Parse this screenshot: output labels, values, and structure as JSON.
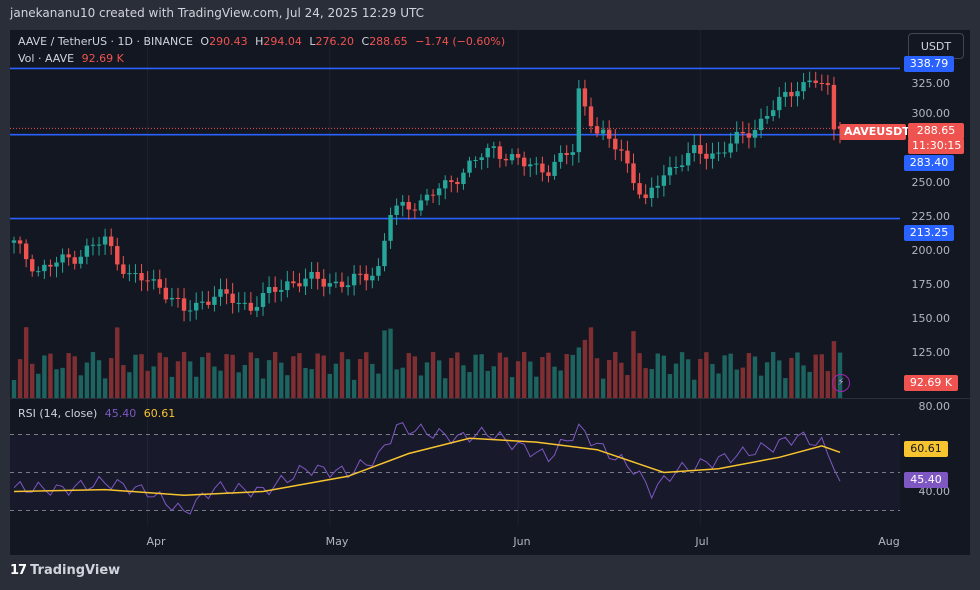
{
  "header": {
    "text": "janekananu10 created with TradingView.com, Jul 24, 2025 12:29 UTC"
  },
  "currency_button": "USDT",
  "legend": {
    "pair": "AAVE / TetherUS · 1D · BINANCE",
    "open_label": "O",
    "open": "290.43",
    "high_label": "H",
    "high": "294.04",
    "low_label": "L",
    "low": "276.20",
    "close_label": "C",
    "close": "288.65",
    "change": "−1.74 (−0.60%)",
    "vol_label": "Vol · AAVE",
    "vol": "92.69 K"
  },
  "rsi_legend": {
    "label": "RSI (14, close)",
    "value": "45.40",
    "ma": "60.61"
  },
  "price_axis": [
    "325.00",
    "300.00",
    "250.00",
    "225.00",
    "200.00",
    "175.00",
    "150.00",
    "125.00"
  ],
  "rsi_axis": [
    "80.00",
    "40.00"
  ],
  "time_axis": [
    "Apr",
    "May",
    "Jun",
    "Jul",
    "Aug"
  ],
  "tags": {
    "level_top": "338.79",
    "symbol": "AAVEUSDT",
    "last_price": "288.65",
    "countdown": "11:30:15",
    "level_mid": "283.40",
    "level_low": "213.25",
    "volume": "92.69 K",
    "rsi_ma": "60.61",
    "rsi": "45.40"
  },
  "footer": {
    "logo": "TradingView"
  },
  "colors": {
    "up": "#26a69a",
    "down": "#ef5350",
    "level": "#2962ff",
    "rsi": "#7e57c2",
    "rsi_ma": "#f7c32e",
    "bg": "#131722"
  },
  "chart_data": [
    {
      "type": "candlestick",
      "title": "AAVE / TetherUS · 1D · BINANCE",
      "x_range": [
        "2025-03-10",
        "2025-07-24"
      ],
      "ylim": [
        100,
        345
      ],
      "horizontal_levels": [
        338.79,
        283.4,
        213.25
      ],
      "anchors": [
        [
          "2025-03-10",
          192
        ],
        [
          "2025-03-14",
          170
        ],
        [
          "2025-03-20",
          182
        ],
        [
          "2025-03-25",
          195
        ],
        [
          "2025-03-29",
          165
        ],
        [
          "2025-04-03",
          158
        ],
        [
          "2025-04-07",
          135
        ],
        [
          "2025-04-12",
          150
        ],
        [
          "2025-04-18",
          140
        ],
        [
          "2025-04-24",
          160
        ],
        [
          "2025-04-29",
          162
        ],
        [
          "2025-05-04",
          158
        ],
        [
          "2025-05-09",
          172
        ],
        [
          "2025-05-11",
          218
        ],
        [
          "2025-05-16",
          228
        ],
        [
          "2025-05-20",
          240
        ],
        [
          "2025-05-24",
          258
        ],
        [
          "2025-05-28",
          272
        ],
        [
          "2025-06-02",
          258
        ],
        [
          "2025-06-06",
          255
        ],
        [
          "2025-06-10",
          270
        ],
        [
          "2025-06-11",
          320
        ],
        [
          "2025-06-14",
          285
        ],
        [
          "2025-06-18",
          270
        ],
        [
          "2025-06-22",
          225
        ],
        [
          "2025-06-25",
          252
        ],
        [
          "2025-06-30",
          268
        ],
        [
          "2025-07-04",
          268
        ],
        [
          "2025-07-10",
          290
        ],
        [
          "2025-07-14",
          310
        ],
        [
          "2025-07-17",
          325
        ],
        [
          "2025-07-20",
          328
        ],
        [
          "2025-07-22",
          320
        ],
        [
          "2025-07-23",
          290
        ],
        [
          "2025-07-24",
          288.65
        ]
      ],
      "last": {
        "open": 290.43,
        "high": 294.04,
        "low": 276.2,
        "close": 288.65
      }
    },
    {
      "type": "bar",
      "title": "Vol · AAVE",
      "last_value": 92.69
    },
    {
      "type": "line",
      "title": "RSI (14, close)",
      "ylim": [
        25,
        85
      ],
      "reference_lines": [
        70,
        50,
        30
      ],
      "series": [
        {
          "name": "RSI",
          "points": [
            [
              "2025-03-10",
              42
            ],
            [
              "2025-03-18",
              41
            ],
            [
              "2025-03-25",
              45
            ],
            [
              "2025-04-01",
              40
            ],
            [
              "2025-04-07",
              29
            ],
            [
              "2025-04-12",
              42
            ],
            [
              "2025-04-20",
              40
            ],
            [
              "2025-04-27",
              52
            ],
            [
              "2025-05-04",
              50
            ],
            [
              "2025-05-09",
              58
            ],
            [
              "2025-05-12",
              74
            ],
            [
              "2025-05-16",
              72
            ],
            [
              "2025-05-22",
              68
            ],
            [
              "2025-05-27",
              71
            ],
            [
              "2025-06-01",
              64
            ],
            [
              "2025-06-06",
              58
            ],
            [
              "2025-06-11",
              73
            ],
            [
              "2025-06-15",
              62
            ],
            [
              "2025-06-20",
              52
            ],
            [
              "2025-06-23",
              40
            ],
            [
              "2025-06-27",
              51
            ],
            [
              "2025-07-02",
              55
            ],
            [
              "2025-07-08",
              60
            ],
            [
              "2025-07-13",
              64
            ],
            [
              "2025-07-17",
              69
            ],
            [
              "2025-07-21",
              65
            ],
            [
              "2025-07-23",
              55
            ],
            [
              "2025-07-24",
              45.4
            ]
          ]
        },
        {
          "name": "RSI-based MA",
          "points": [
            [
              "2025-03-10",
              40
            ],
            [
              "2025-03-25",
              41
            ],
            [
              "2025-04-07",
              38
            ],
            [
              "2025-04-20",
              40
            ],
            [
              "2025-05-04",
              48
            ],
            [
              "2025-05-14",
              60
            ],
            [
              "2025-05-24",
              68
            ],
            [
              "2025-06-04",
              66
            ],
            [
              "2025-06-14",
              62
            ],
            [
              "2025-06-25",
              50
            ],
            [
              "2025-07-04",
              52
            ],
            [
              "2025-07-14",
              58
            ],
            [
              "2025-07-21",
              64
            ],
            [
              "2025-07-24",
              60.61
            ]
          ]
        }
      ]
    }
  ]
}
